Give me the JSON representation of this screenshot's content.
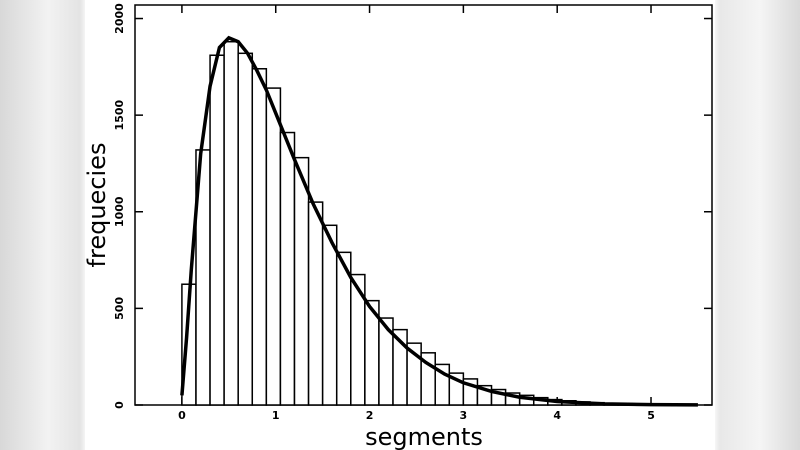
{
  "chart_data": {
    "type": "histogram",
    "xlabel": "segments",
    "ylabel": "frequecies",
    "bins": [
      0,
      0.15,
      0.3,
      0.45,
      0.6,
      0.75,
      0.9,
      1.05,
      1.2,
      1.35,
      1.5,
      1.65,
      1.8,
      1.95,
      2.1,
      2.25,
      2.4,
      2.55,
      2.7,
      2.85,
      3.0,
      3.15,
      3.3,
      3.45,
      3.6,
      3.75,
      3.9,
      4.05,
      4.2,
      4.35,
      4.5,
      4.65,
      4.8,
      4.95,
      5.1
    ],
    "counts": [
      625,
      1320,
      1810,
      1880,
      1820,
      1740,
      1640,
      1410,
      1280,
      1050,
      930,
      790,
      675,
      540,
      450,
      390,
      320,
      270,
      210,
      165,
      135,
      100,
      80,
      62,
      50,
      38,
      28,
      22,
      16,
      12,
      9,
      7,
      5,
      4
    ],
    "curve": {
      "x": [
        0,
        0.05,
        0.1,
        0.2,
        0.3,
        0.4,
        0.5,
        0.6,
        0.7,
        0.8,
        0.9,
        1.0,
        1.2,
        1.4,
        1.6,
        1.8,
        2.0,
        2.2,
        2.4,
        2.6,
        2.8,
        3.0,
        3.3,
        3.6,
        4.0,
        4.5,
        5.0,
        5.5
      ],
      "y": [
        50,
        350,
        700,
        1300,
        1650,
        1850,
        1900,
        1880,
        1820,
        1730,
        1630,
        1510,
        1270,
        1040,
        840,
        660,
        510,
        390,
        295,
        220,
        160,
        115,
        70,
        40,
        18,
        6,
        2,
        0.5
      ]
    },
    "color": "#000000",
    "xlim": [
      -0.5,
      5.65
    ],
    "ylim": [
      0,
      2070
    ],
    "xticks": [
      0,
      1,
      2,
      3,
      4,
      5
    ],
    "yticks": [
      0,
      500,
      1000,
      1500,
      2000
    ]
  }
}
